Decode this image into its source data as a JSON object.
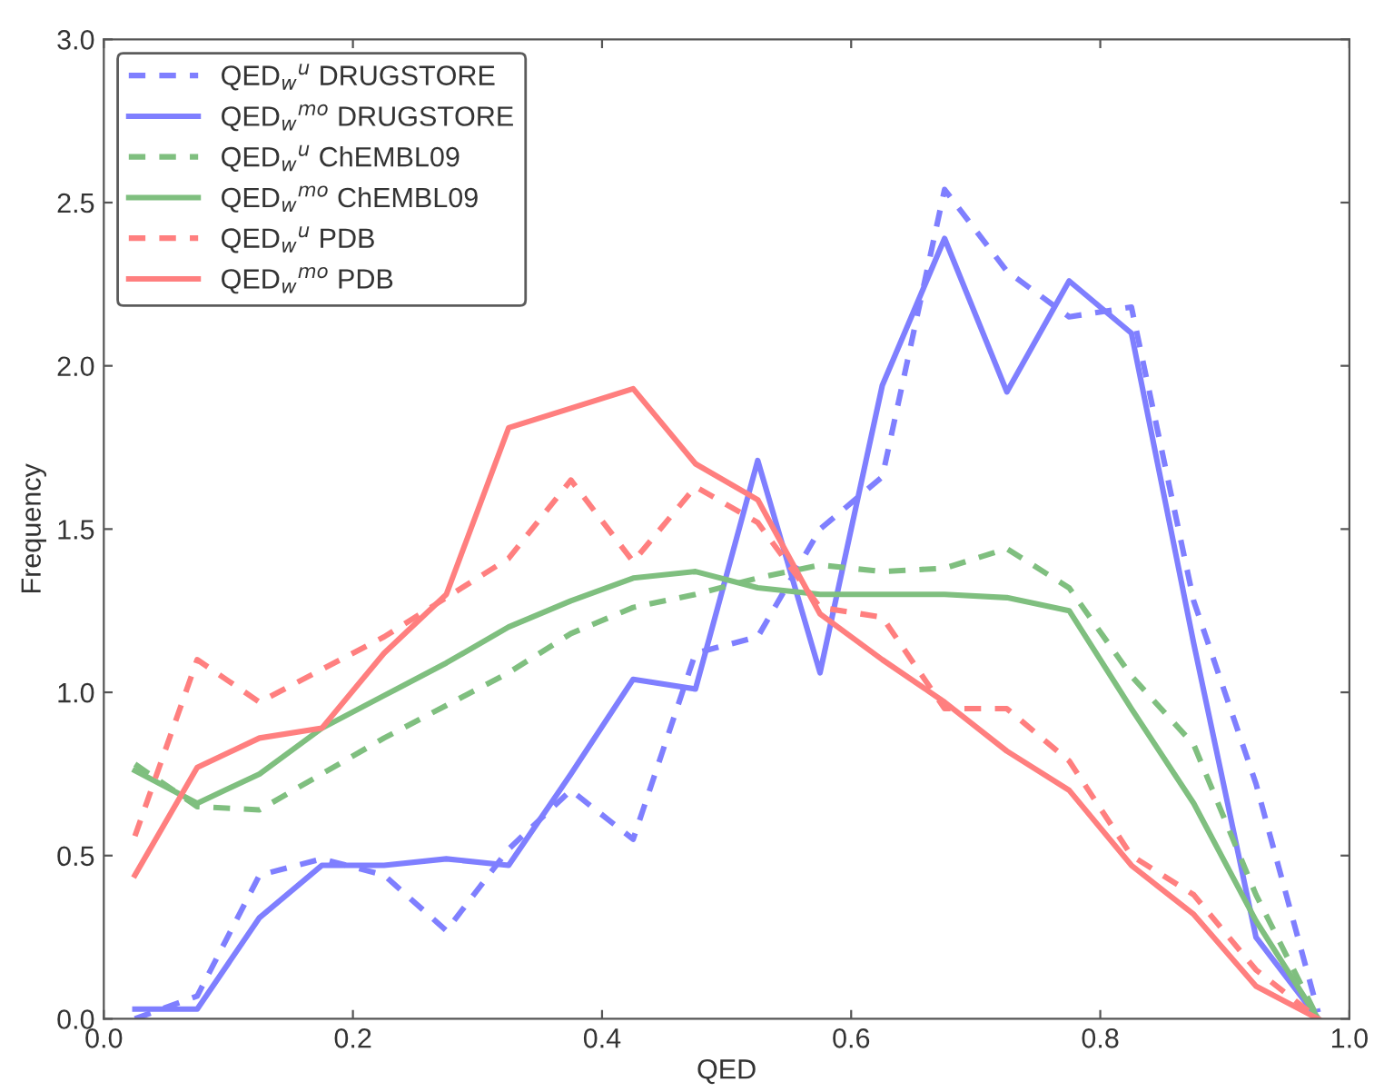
{
  "chart_data": {
    "type": "line",
    "xlabel": "QED",
    "ylabel": "Frequency",
    "x": [
      0.025,
      0.075,
      0.125,
      0.175,
      0.225,
      0.275,
      0.325,
      0.375,
      0.425,
      0.475,
      0.525,
      0.575,
      0.625,
      0.675,
      0.725,
      0.775,
      0.825,
      0.875,
      0.925,
      0.975
    ],
    "xlim": [
      0,
      1
    ],
    "xticks": [
      {
        "value": 0,
        "label": "0.0"
      },
      0.2,
      0.4,
      0.6,
      0.8,
      {
        "value": 1,
        "label": "1.0"
      }
    ],
    "ylim": [
      0,
      3
    ],
    "yticks": [
      {
        "value": 0,
        "label": "0.0"
      },
      0.5,
      {
        "value": 1,
        "label": "1.0"
      },
      1.5,
      {
        "value": 2,
        "label": "2.0"
      },
      2.5,
      {
        "value": 3,
        "label": "3.0"
      }
    ],
    "grid": false,
    "legend": "top left",
    "marker": "none",
    "series": [
      {
        "name": "QED$_{w}$$^{u}$ DRUGSTORE",
        "color": "#7f7fff",
        "line_style": "dashed",
        "values": [
          0.0,
          0.07,
          0.44,
          0.49,
          0.44,
          0.27,
          0.52,
          0.7,
          0.55,
          1.12,
          1.17,
          1.5,
          1.66,
          2.54,
          2.29,
          2.15,
          2.18,
          1.28,
          0.72,
          0.02
        ]
      },
      {
        "name": "QED$_{w}$$^{mo}$ DRUGSTORE",
        "color": "#7f7fff",
        "line_style": "solid",
        "values": [
          0.03,
          0.03,
          0.31,
          0.47,
          0.47,
          0.49,
          0.47,
          0.75,
          1.04,
          1.01,
          1.71,
          1.06,
          1.94,
          2.39,
          1.92,
          2.26,
          2.1,
          1.15,
          0.25,
          0.0
        ]
      },
      {
        "name": "QED$_{w}$$^{u}$ ChEMBL09",
        "color": "#7fbf7f",
        "line_style": "dashed",
        "values": [
          0.78,
          0.65,
          0.64,
          0.75,
          0.86,
          0.96,
          1.06,
          1.18,
          1.26,
          1.3,
          1.35,
          1.39,
          1.37,
          1.38,
          1.44,
          1.32,
          1.05,
          0.84,
          0.38,
          0.0
        ]
      },
      {
        "name": "QED$_{w}$$^{mo}$ ChEMBL09",
        "color": "#7fbf7f",
        "line_style": "solid",
        "values": [
          0.76,
          0.66,
          0.75,
          0.89,
          0.99,
          1.09,
          1.2,
          1.28,
          1.35,
          1.37,
          1.32,
          1.3,
          1.3,
          1.3,
          1.29,
          1.25,
          0.95,
          0.66,
          0.3,
          0.0
        ]
      },
      {
        "name": "QED$_{w}$$^{u}$ PDB",
        "color": "#ff7f7f",
        "line_style": "dashed",
        "values": [
          0.56,
          1.1,
          0.97,
          1.07,
          1.17,
          1.29,
          1.41,
          1.65,
          1.4,
          1.63,
          1.52,
          1.26,
          1.23,
          0.95,
          0.95,
          0.79,
          0.5,
          0.38,
          0.15,
          0.0
        ]
      },
      {
        "name": "QED$_{w}$$^{mo}$ PDB",
        "color": "#ff7f7f",
        "line_style": "solid",
        "values": [
          0.44,
          0.77,
          0.86,
          0.89,
          1.12,
          1.3,
          1.81,
          1.87,
          1.93,
          1.7,
          1.59,
          1.24,
          1.1,
          0.97,
          0.82,
          0.7,
          0.47,
          0.32,
          0.1,
          0.0
        ]
      }
    ]
  }
}
